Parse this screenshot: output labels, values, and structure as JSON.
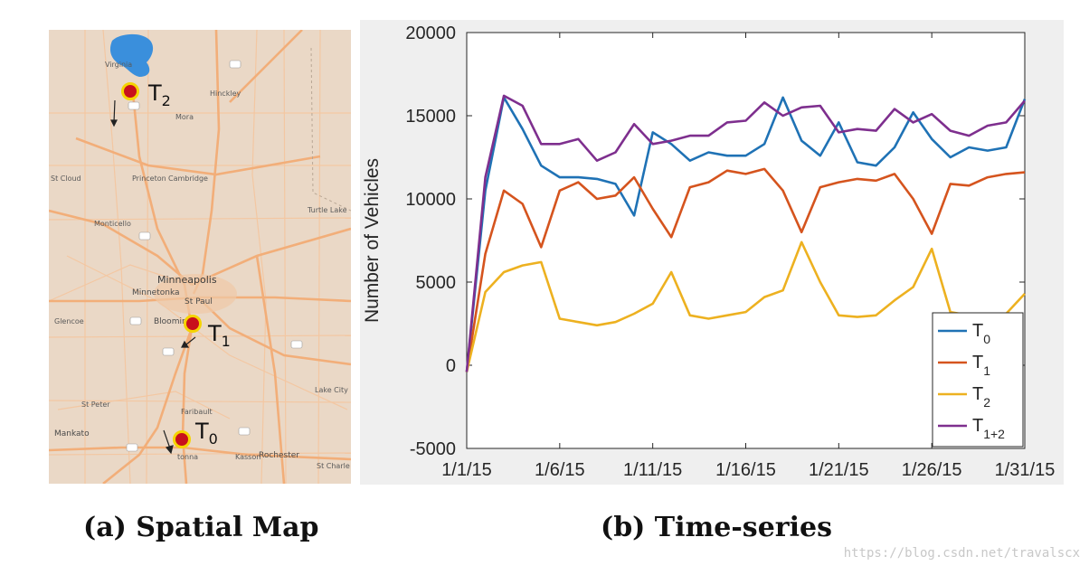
{
  "map": {
    "labels": {
      "minneapolis": "Minneapolis",
      "st_paul": "St Paul",
      "minnetonka": "Minnetonka",
      "bloomington": "Bloomin",
      "st_cloud": "St Cloud",
      "princeton": "Princeton",
      "cambridge": "Cambridge",
      "monticello": "Monticello",
      "turtle_lake": "Turtle Lake",
      "hinckley": "Hinckley",
      "mora": "Mora",
      "glencoe": "Glencoe",
      "st_peter": "St Peter",
      "faribault": "Faribault",
      "mankato": "Mankato",
      "owatonna": "tonna",
      "kasson": "Kasson",
      "rochester": "Rochester",
      "st_charles": "St Charle",
      "lake_city": "Lake City",
      "virginia": "Virginia"
    },
    "markers": [
      {
        "name": "T",
        "sub": "2"
      },
      {
        "name": "T",
        "sub": "1"
      },
      {
        "name": "T",
        "sub": "0"
      }
    ],
    "colors": {
      "land": "#ead8c6",
      "roads": "#f2ae79",
      "water": "#3a8fdc",
      "marker_fill": "#c8101c",
      "marker_ring": "#f5d400"
    }
  },
  "chart_data": {
    "type": "line",
    "ylabel": "Number of Vehicles",
    "xlabel": "",
    "title": "",
    "ylim": [
      -5000,
      20000
    ],
    "yticks": [
      -5000,
      0,
      5000,
      10000,
      15000,
      20000
    ],
    "ytick_labels": [
      "-5000",
      "0",
      "5000",
      "10000",
      "15000",
      "20000"
    ],
    "xticks": [
      1,
      6,
      11,
      16,
      21,
      26,
      31
    ],
    "xtick_labels": [
      "1/1/15",
      "1/6/15",
      "1/11/15",
      "1/16/15",
      "1/21/15",
      "1/26/15",
      "1/31/15"
    ],
    "xlim": [
      1,
      31
    ],
    "x": [
      1,
      2,
      3,
      4,
      5,
      6,
      7,
      8,
      9,
      10,
      11,
      12,
      13,
      14,
      15,
      16,
      17,
      18,
      19,
      20,
      21,
      22,
      23,
      24,
      25,
      26,
      27,
      28,
      29,
      30,
      31
    ],
    "legend_position": "bottom-right",
    "series": [
      {
        "name": "T",
        "sub": "0",
        "color": "#1f72b5",
        "values": [
          -400,
          10500,
          16100,
          14200,
          12000,
          11300,
          11300,
          11200,
          10900,
          9000,
          14000,
          13300,
          12300,
          12800,
          12600,
          12600,
          13300,
          16100,
          13500,
          12600,
          14600,
          12200,
          12000,
          13100,
          15200,
          13600,
          12500,
          13100,
          12900,
          13100,
          16000
        ]
      },
      {
        "name": "T",
        "sub": "1",
        "color": "#d5541e",
        "values": [
          -400,
          6700,
          10500,
          9700,
          7100,
          10500,
          11000,
          10000,
          10200,
          11300,
          9400,
          7700,
          10700,
          11000,
          11700,
          11500,
          11800,
          10500,
          8000,
          10700,
          11000,
          11200,
          11100,
          11500,
          10000,
          7900,
          10900,
          10800,
          11300,
          11500,
          11600
        ]
      },
      {
        "name": "T",
        "sub": "2",
        "color": "#edb120",
        "values": [
          -400,
          4400,
          5600,
          6000,
          6200,
          2800,
          2600,
          2400,
          2600,
          3100,
          3700,
          5600,
          3000,
          2800,
          3000,
          3200,
          4100,
          4500,
          7400,
          5000,
          3000,
          2900,
          3000,
          3900,
          4700,
          7000,
          3200,
          3000,
          3100,
          3100,
          4300
        ]
      },
      {
        "name": "T",
        "sub": "1+2",
        "color": "#7e2f8e",
        "values": [
          -400,
          11300,
          16200,
          15600,
          13300,
          13300,
          13600,
          12300,
          12800,
          14500,
          13300,
          13500,
          13800,
          13800,
          14600,
          14700,
          15800,
          15000,
          15500,
          15600,
          14000,
          14200,
          14100,
          15400,
          14600,
          15100,
          14100,
          13800,
          14400,
          14600,
          15900
        ]
      }
    ]
  },
  "captions": {
    "a": "(a) Spatial Map",
    "b": "(b) Time-series"
  },
  "watermark": "https://blog.csdn.net/travalscx"
}
